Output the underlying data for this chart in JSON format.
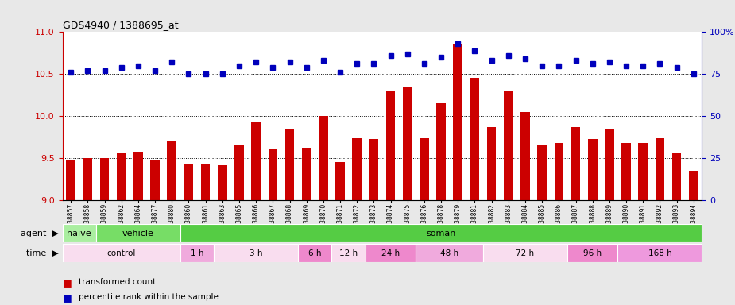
{
  "title": "GDS4940 / 1388695_at",
  "samples": [
    "GSM338857",
    "GSM338858",
    "GSM338859",
    "GSM338862",
    "GSM338864",
    "GSM338877",
    "GSM338880",
    "GSM338860",
    "GSM338861",
    "GSM338863",
    "GSM338865",
    "GSM338866",
    "GSM338867",
    "GSM338868",
    "GSM338869",
    "GSM338870",
    "GSM338871",
    "GSM338872",
    "GSM338873",
    "GSM338874",
    "GSM338875",
    "GSM338876",
    "GSM338878",
    "GSM338879",
    "GSM338881",
    "GSM338882",
    "GSM338883",
    "GSM338884",
    "GSM338885",
    "GSM338886",
    "GSM338887",
    "GSM338888",
    "GSM338889",
    "GSM338890",
    "GSM338891",
    "GSM338892",
    "GSM338893",
    "GSM338894"
  ],
  "bar_values": [
    9.47,
    9.5,
    9.5,
    9.55,
    9.57,
    9.47,
    9.7,
    9.42,
    9.43,
    9.41,
    9.65,
    9.93,
    9.6,
    9.85,
    9.62,
    10.0,
    9.45,
    9.73,
    9.72,
    10.3,
    10.35,
    9.73,
    10.15,
    10.85,
    10.45,
    9.87,
    10.3,
    10.05,
    9.65,
    9.68,
    9.87,
    9.72,
    9.85,
    9.68,
    9.68,
    9.73,
    9.55,
    9.35
  ],
  "percentile_values": [
    76,
    77,
    77,
    79,
    80,
    77,
    82,
    75,
    75,
    75,
    80,
    82,
    79,
    82,
    79,
    83,
    76,
    81,
    81,
    86,
    87,
    81,
    85,
    93,
    89,
    83,
    86,
    84,
    80,
    80,
    83,
    81,
    82,
    80,
    80,
    81,
    79,
    75
  ],
  "bar_color": "#cc0000",
  "percentile_color": "#0000bb",
  "ylim_left": [
    9.0,
    11.0
  ],
  "ylim_right": [
    0,
    100
  ],
  "yticks_left": [
    9.0,
    9.5,
    10.0,
    10.5,
    11.0
  ],
  "yticks_right": [
    0,
    25,
    50,
    75,
    100
  ],
  "grid_lines": [
    9.5,
    10.0,
    10.5
  ],
  "agent_groups": [
    {
      "label": "naive",
      "start": 0,
      "end": 2,
      "color": "#aaeea0"
    },
    {
      "label": "vehicle",
      "start": 2,
      "end": 7,
      "color": "#77dd66"
    },
    {
      "label": "soman",
      "start": 7,
      "end": 38,
      "color": "#55cc44"
    }
  ],
  "time_groups": [
    {
      "label": "control",
      "start": 0,
      "end": 7,
      "color": "#f9ddef"
    },
    {
      "label": "1 h",
      "start": 7,
      "end": 9,
      "color": "#f0aadd"
    },
    {
      "label": "3 h",
      "start": 9,
      "end": 14,
      "color": "#f9ddef"
    },
    {
      "label": "6 h",
      "start": 14,
      "end": 16,
      "color": "#ee88cc"
    },
    {
      "label": "12 h",
      "start": 16,
      "end": 18,
      "color": "#f9ddef"
    },
    {
      "label": "24 h",
      "start": 18,
      "end": 21,
      "color": "#ee88cc"
    },
    {
      "label": "48 h",
      "start": 21,
      "end": 25,
      "color": "#f0aadd"
    },
    {
      "label": "72 h",
      "start": 25,
      "end": 30,
      "color": "#f9ddef"
    },
    {
      "label": "96 h",
      "start": 30,
      "end": 33,
      "color": "#ee88cc"
    },
    {
      "label": "168 h",
      "start": 33,
      "end": 38,
      "color": "#ee99dd"
    }
  ],
  "fig_bg": "#e8e8e8",
  "plot_bg": "#ffffff",
  "xtick_area_bg": "#cccccc"
}
